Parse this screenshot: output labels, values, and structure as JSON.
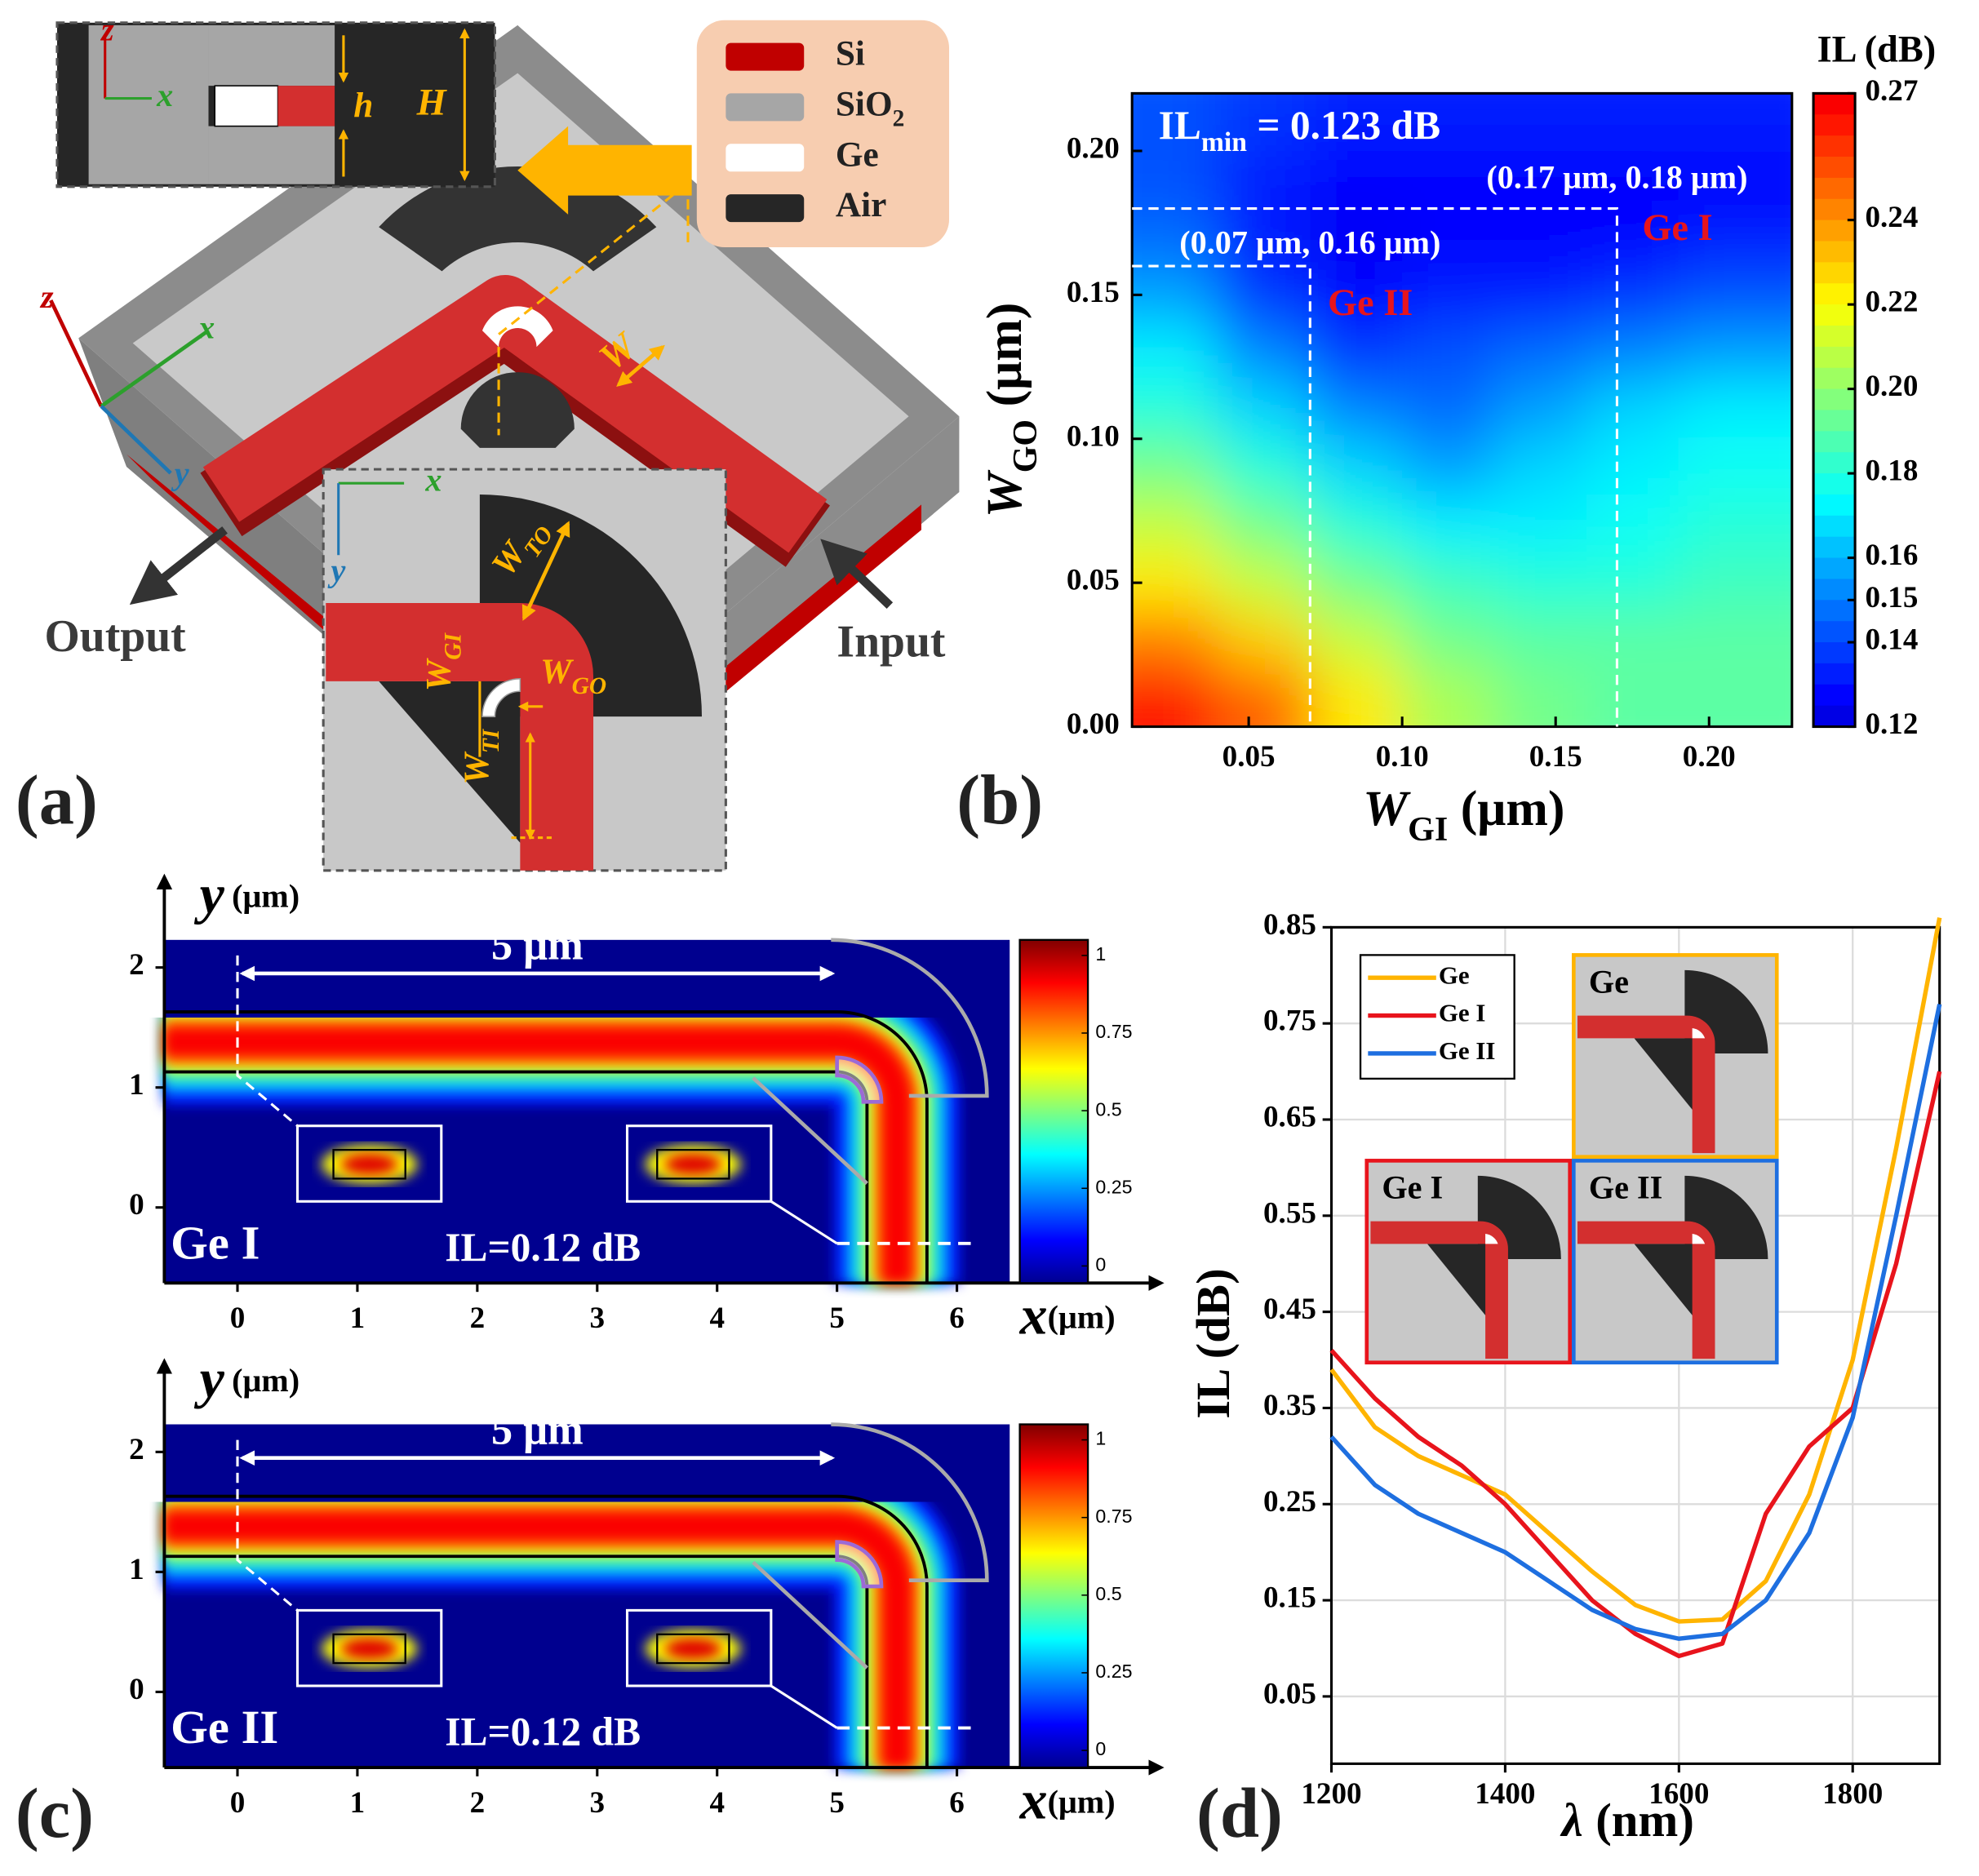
{
  "panel_labels": [
    "(a)",
    "(b)",
    "(c)",
    "(d)"
  ],
  "diagram": {
    "legend": [
      {
        "label": "Si",
        "color": "#c00000"
      },
      {
        "label": "SiO",
        "sub": "2",
        "color": "#a6a6a6"
      },
      {
        "label": "Ge",
        "color": "#ffffff"
      },
      {
        "label": "Air",
        "color": "#262626"
      }
    ],
    "ports": [
      "Output",
      "Input"
    ],
    "top_inset_axes": [
      "z",
      "x"
    ],
    "main_axes": [
      "z",
      "x",
      "y"
    ],
    "bottom_inset_axes": [
      "x",
      "y"
    ],
    "dims": [
      "h",
      "H",
      "W"
    ],
    "bottom_inset_dims": [
      {
        "main": "W",
        "sub": "TO"
      },
      {
        "main": "W",
        "sub": "GI"
      },
      {
        "main": "W",
        "sub": "GO"
      },
      {
        "main": "W",
        "sub": "TI"
      }
    ]
  },
  "chart_data": [
    {
      "type": "contour",
      "colorbar_label": "IL (dB)",
      "xlabel": {
        "main": "W",
        "sub": "GI",
        "unit": "(μm)"
      },
      "ylabel": {
        "main": "W",
        "sub": "GO",
        "unit": "(μm)"
      },
      "annotation": {
        "main": "IL",
        "sub": "min",
        "rest": "= 0.123 dB"
      },
      "points": [
        {
          "x": 0.17,
          "y": 0.18,
          "label": "(0.17 μm, 0.18 μm)",
          "name": "Ge I"
        },
        {
          "x": 0.07,
          "y": 0.16,
          "label": "(0.07 μm, 0.16 μm)",
          "name": "Ge II"
        }
      ],
      "x": [
        0.025,
        0.055,
        0.085,
        0.115,
        0.145,
        0.175,
        0.205
      ],
      "y": [
        0.01,
        0.03,
        0.05,
        0.07,
        0.09,
        0.11,
        0.13,
        0.15,
        0.17,
        0.19,
        0.21
      ],
      "z": [
        [
          0.265,
          0.25,
          0.225,
          0.205,
          0.195,
          0.19,
          0.19
        ],
        [
          0.245,
          0.23,
          0.21,
          0.195,
          0.19,
          0.19,
          0.19
        ],
        [
          0.225,
          0.21,
          0.195,
          0.185,
          0.18,
          0.18,
          0.185
        ],
        [
          0.21,
          0.195,
          0.18,
          0.17,
          0.17,
          0.175,
          0.18
        ],
        [
          0.195,
          0.18,
          0.165,
          0.155,
          0.165,
          0.17,
          0.175
        ],
        [
          0.18,
          0.165,
          0.15,
          0.145,
          0.155,
          0.165,
          0.17
        ],
        [
          0.17,
          0.15,
          0.135,
          0.14,
          0.145,
          0.15,
          0.155
        ],
        [
          0.155,
          0.135,
          0.125,
          0.13,
          0.13,
          0.135,
          0.14
        ],
        [
          0.145,
          0.13,
          0.123,
          0.125,
          0.125,
          0.125,
          0.13
        ],
        [
          0.14,
          0.13,
          0.125,
          0.125,
          0.125,
          0.125,
          0.125
        ],
        [
          0.14,
          0.135,
          0.13,
          0.13,
          0.13,
          0.13,
          0.13
        ]
      ],
      "xlim": [
        0.012,
        0.227
      ],
      "ylim": [
        0,
        0.22
      ],
      "xticks": [
        0.05,
        {
          "value": 0.1,
          "label": "0.10"
        },
        0.15,
        {
          "value": 0.2,
          "label": "0.20"
        }
      ],
      "yticks": [
        {
          "value": 0,
          "label": "0.00"
        },
        0.05,
        {
          "value": 0.1,
          "label": "0.10"
        },
        0.15,
        {
          "value": 0.2,
          "label": "0.20"
        }
      ],
      "clim": [
        0.12,
        0.27
      ],
      "cticks": [
        0.12,
        0.14,
        0.15,
        0.16,
        0.18,
        {
          "value": 0.2,
          "label": "0.20"
        },
        0.22,
        0.24,
        0.27
      ]
    },
    {
      "type": "field",
      "label": "Ge I",
      "annotation": "IL=0.12 dB",
      "span_label": "5 μm",
      "xlabel": {
        "main": "x",
        "unit": "(μm)"
      },
      "ylabel": {
        "main": "y",
        "unit": "(μm)"
      },
      "xlim": [
        -0.61,
        6.44
      ],
      "ylim": [
        -0.63,
        2.23
      ],
      "xticks": [
        0,
        1,
        2,
        3,
        4,
        5,
        6
      ],
      "yticks": [
        0,
        1,
        2
      ],
      "clim": [
        -0.055,
        1.05
      ],
      "cticks": [
        0,
        0.25,
        0.5,
        0.75,
        1
      ]
    },
    {
      "type": "field",
      "label": "Ge II",
      "annotation": "IL=0.12 dB",
      "span_label": "5 μm",
      "xlabel": {
        "main": "x",
        "unit": "(μm)"
      },
      "ylabel": {
        "main": "y",
        "unit": "(μm)"
      },
      "xlim": [
        -0.61,
        6.44
      ],
      "ylim": [
        -0.63,
        2.23
      ],
      "xticks": [
        0,
        1,
        2,
        3,
        4,
        5,
        6
      ],
      "yticks": [
        0,
        1,
        2
      ],
      "clim": [
        -0.055,
        1.05
      ],
      "cticks": [
        0,
        0.25,
        0.5,
        0.75,
        1
      ]
    },
    {
      "type": "line",
      "xlabel": {
        "main": "λ",
        "unit": "(nm)"
      },
      "ylabel": "IL (dB)",
      "x": [
        1200,
        1250,
        1300,
        1350,
        1400,
        1450,
        1500,
        1550,
        1600,
        1650,
        1700,
        1750,
        1800,
        1850,
        1900
      ],
      "series": [
        {
          "name": "Ge",
          "color": "#ffb400",
          "values": [
            0.39,
            0.33,
            0.3,
            0.28,
            0.26,
            0.22,
            0.18,
            0.145,
            0.128,
            0.13,
            0.17,
            0.26,
            0.4,
            0.62,
            0.86
          ]
        },
        {
          "name": "Ge I",
          "color": "#e8141c",
          "values": [
            0.41,
            0.36,
            0.32,
            0.29,
            0.25,
            0.2,
            0.15,
            0.115,
            0.092,
            0.105,
            0.24,
            0.31,
            0.35,
            0.5,
            0.7
          ]
        },
        {
          "name": "Ge II",
          "color": "#1e6fe0",
          "values": [
            0.32,
            0.27,
            0.24,
            0.22,
            0.2,
            0.17,
            0.14,
            0.12,
            0.11,
            0.115,
            0.15,
            0.22,
            0.34,
            0.55,
            0.77
          ]
        }
      ],
      "xlim": [
        1200,
        1900
      ],
      "ylim": [
        -0.02,
        0.85
      ],
      "xticks": [
        1200,
        1400,
        1600,
        1800
      ],
      "yticks": [
        0.05,
        0.15,
        0.25,
        0.35,
        0.45,
        0.55,
        0.65,
        0.75,
        0.85
      ],
      "grid": true,
      "legend": "upper left"
    }
  ]
}
